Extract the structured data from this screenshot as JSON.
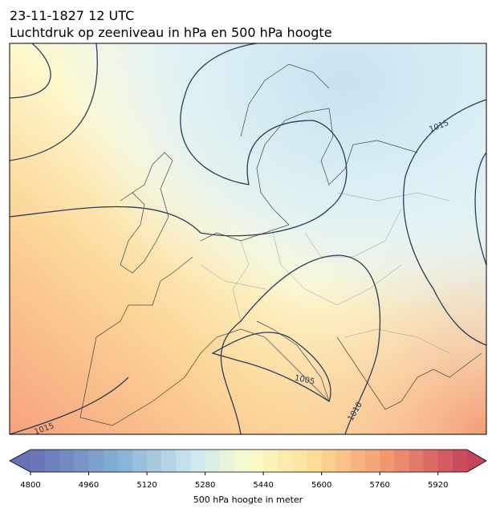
{
  "header": {
    "time": "23-11-1827 12 UTC",
    "title": "Luchtdruk op zeeniveau in hPa en 500 hPa hoogte"
  },
  "colorbar": {
    "label": "500 hPa hoogte in meter",
    "range": [
      4800,
      6000
    ],
    "ticks": [
      4800,
      4960,
      5120,
      5280,
      5440,
      5600,
      5760,
      5920
    ]
  },
  "contour_labels": [
    1015,
    1005,
    1010,
    1015
  ]
}
